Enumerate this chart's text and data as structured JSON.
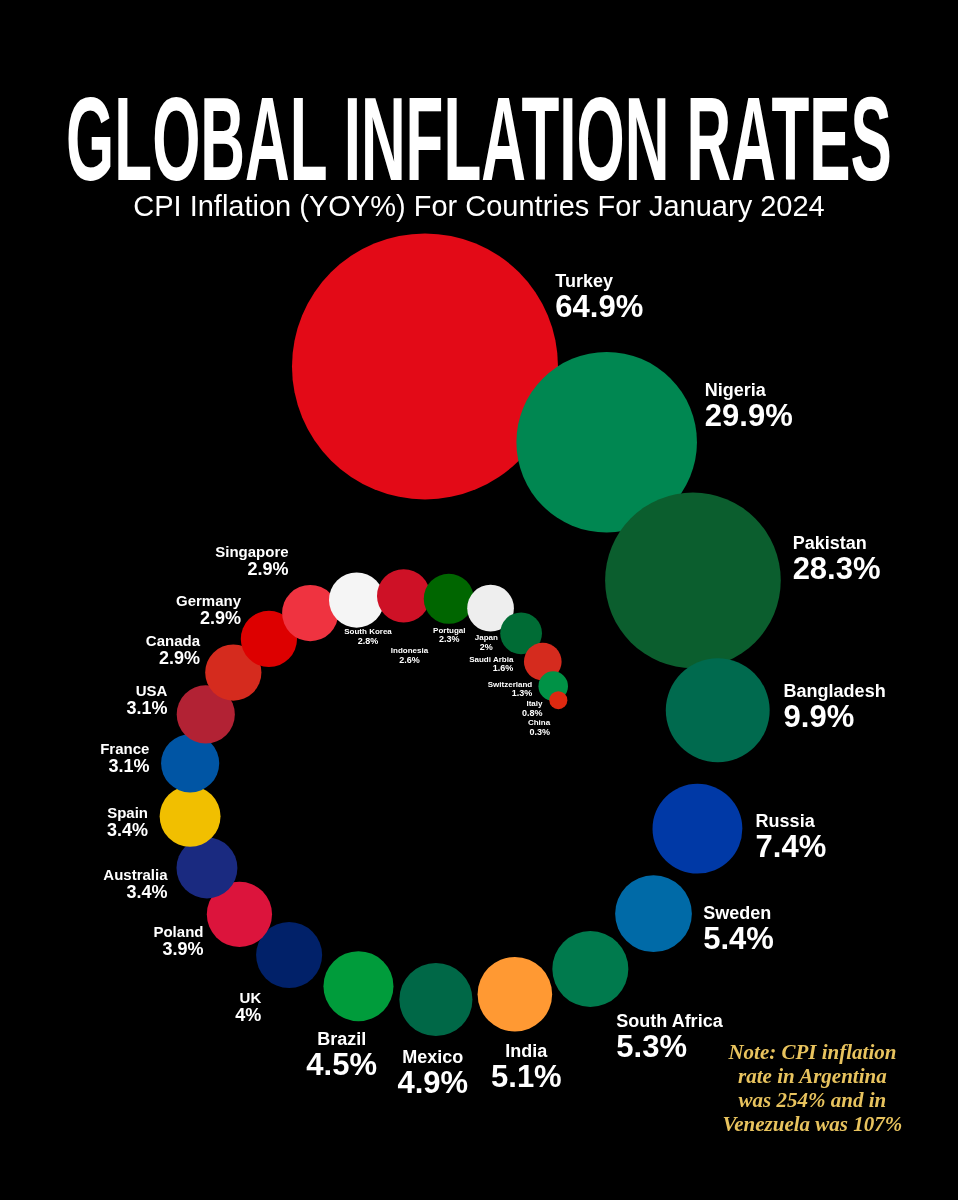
{
  "chart_data": {
    "type": "other",
    "title": "GLOBAL INFLATION RATES",
    "subtitle": "CPI Inflation (YOY%) For Countries For January 2024",
    "categories": [
      "Turkey",
      "Nigeria",
      "Pakistan",
      "Bangladesh",
      "Russia",
      "Sweden",
      "South Africa",
      "India",
      "Mexico",
      "Brazil",
      "UK",
      "Poland",
      "Australia",
      "Spain",
      "France",
      "USA",
      "Canada",
      "Germany",
      "Singapore",
      "South Korea",
      "Indonesia",
      "Portugal",
      "Japan",
      "Saudi Arbia",
      "Switzerland",
      "Italy",
      "China"
    ],
    "values": [
      64.9,
      29.9,
      28.3,
      9.9,
      7.4,
      5.4,
      5.3,
      5.1,
      4.9,
      4.5,
      4,
      3.9,
      3.4,
      3.4,
      3.1,
      3.1,
      2.9,
      2.9,
      2.9,
      2.8,
      2.6,
      2.3,
      2,
      1.6,
      1.3,
      0.8,
      0.3
    ],
    "value_labels": [
      "64.9%",
      "29.9%",
      "28.3%",
      "9.9%",
      "7.4%",
      "5.4%",
      "5.3%",
      "5.1%",
      "4.9%",
      "4.5%",
      "4%",
      "3.9%",
      "3.4%",
      "3.4%",
      "3.1%",
      "3.1%",
      "2.9%",
      "2.9%",
      "2.9%",
      "2.8%",
      "2.6%",
      "2.3%",
      "2%",
      "1.6%",
      "1.3%",
      "0.8%",
      "0.3%"
    ],
    "colors": [
      "#e30a17",
      "#008751",
      "#0b5e2e",
      "#006a4e",
      "#0039a6",
      "#006aa7",
      "#007a4d",
      "#ff9933",
      "#006847",
      "#009c3b",
      "#012169",
      "#dc143c",
      "#1a2a80",
      "#f1bf00",
      "#0055a4",
      "#b22234",
      "#d52b1e",
      "#dd0000",
      "#ef3340",
      "#f5f5f5",
      "#ce1126",
      "#006600",
      "#eeeeee",
      "#006c35",
      "#d52b1e",
      "#009246",
      "#de2910"
    ],
    "annotations": [
      "Note: CPI inflation rate in Argentina was 254% and in Venezuela was 107%"
    ]
  }
}
